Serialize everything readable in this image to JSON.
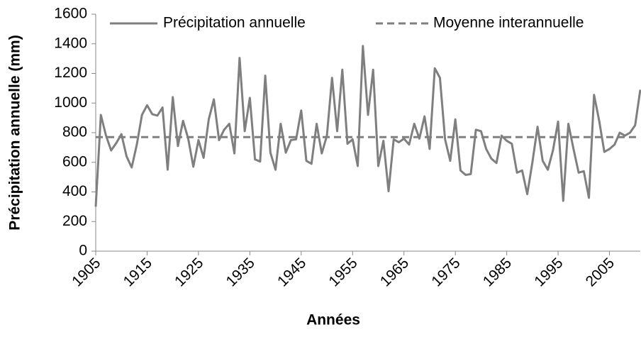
{
  "chart_data": {
    "type": "line",
    "x_label": "Années",
    "y_label": "Précipitation annuelle (mm)",
    "x": [
      1905,
      1906,
      1907,
      1908,
      1909,
      1910,
      1911,
      1912,
      1913,
      1914,
      1915,
      1916,
      1917,
      1918,
      1919,
      1920,
      1921,
      1922,
      1923,
      1924,
      1925,
      1926,
      1927,
      1928,
      1929,
      1930,
      1931,
      1932,
      1933,
      1934,
      1935,
      1936,
      1937,
      1938,
      1939,
      1940,
      1941,
      1942,
      1943,
      1944,
      1945,
      1946,
      1947,
      1948,
      1949,
      1950,
      1951,
      1952,
      1953,
      1954,
      1955,
      1956,
      1957,
      1958,
      1959,
      1960,
      1961,
      1962,
      1963,
      1964,
      1965,
      1966,
      1967,
      1968,
      1969,
      1970,
      1971,
      1972,
      1973,
      1974,
      1975,
      1976,
      1977,
      1978,
      1979,
      1980,
      1981,
      1982,
      1983,
      1984,
      1985,
      1986,
      1987,
      1988,
      1989,
      1990,
      1991,
      1992,
      1993,
      1994,
      1995,
      1996,
      1997,
      1998,
      1999,
      2000,
      2001,
      2002,
      2003,
      2004,
      2005,
      2006,
      2007,
      2008,
      2009,
      2010,
      2011
    ],
    "series": [
      {
        "name": "Précipitation annuelle",
        "color": "#7f7f7f",
        "values": [
          300,
          920,
          780,
          680,
          730,
          790,
          640,
          565,
          720,
          920,
          985,
          925,
          915,
          970,
          550,
          1040,
          710,
          880,
          760,
          570,
          750,
          630,
          890,
          1025,
          750,
          820,
          860,
          660,
          1305,
          810,
          1035,
          620,
          605,
          1185,
          665,
          550,
          860,
          665,
          750,
          755,
          950,
          610,
          590,
          860,
          660,
          780,
          1170,
          810,
          1225,
          725,
          755,
          575,
          1385,
          920,
          1225,
          575,
          745,
          405,
          755,
          735,
          760,
          720,
          860,
          760,
          910,
          690,
          1235,
          1170,
          755,
          610,
          890,
          545,
          515,
          520,
          820,
          810,
          690,
          625,
          595,
          780,
          745,
          725,
          530,
          545,
          385,
          600,
          840,
          610,
          550,
          680,
          875,
          340,
          860,
          690,
          530,
          540,
          360,
          1055,
          880,
          670,
          690,
          720,
          800,
          780,
          800,
          850,
          1090
        ]
      }
    ],
    "reference_line": {
      "name": "Moyenne interannuelle",
      "value": 770,
      "color": "#7f7f7f",
      "dashed": true
    },
    "xlim": [
      1905,
      2011
    ],
    "xticks": [
      1905,
      1915,
      1925,
      1935,
      1945,
      1955,
      1965,
      1975,
      1985,
      1995,
      2005
    ],
    "ylim": [
      0,
      1600
    ],
    "yticks": [
      0,
      200,
      400,
      600,
      800,
      1000,
      1200,
      1400,
      1600
    ],
    "grid": false
  }
}
